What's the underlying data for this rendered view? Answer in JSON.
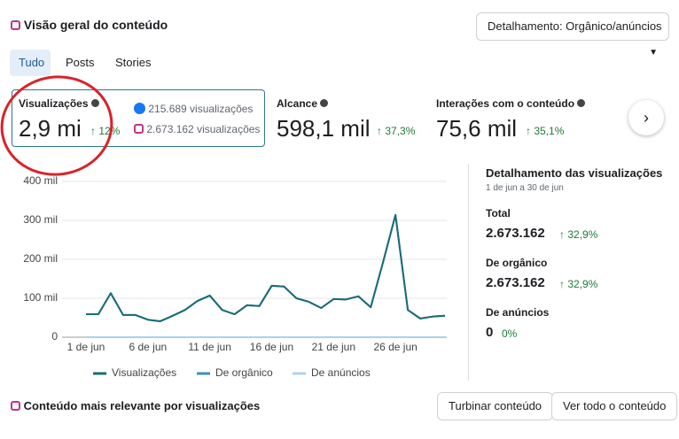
{
  "header": {
    "title": "Visão geral do conteúdo",
    "breakdown": "Detalhamento: Orgânico/anúncios"
  },
  "tabs": [
    "Tudo",
    "Posts",
    "Stories"
  ],
  "metrics": [
    {
      "label": "Visualizações",
      "value": "2,9 mi",
      "change": "12%",
      "facebook": "215.689 visualizações",
      "instagram": "2.673.162 visualizações"
    },
    {
      "label": "Alcance",
      "value": "598,1 mil",
      "change": "37,3%"
    },
    {
      "label": "Interações com o conteúdo",
      "value": "75,6 mil",
      "change": "35,1%"
    }
  ],
  "chart_data": {
    "type": "line",
    "categories": [
      "1 de jun",
      null,
      null,
      null,
      null,
      "6 de jun",
      null,
      null,
      null,
      null,
      "11 de jun",
      null,
      null,
      null,
      null,
      "16 de jun",
      null,
      null,
      null,
      null,
      "21 de jun",
      null,
      null,
      null,
      null,
      "26 de jun",
      null,
      null,
      null,
      null
    ],
    "series": [
      {
        "name": "Visualizações",
        "color": "#1c6b75",
        "values": [
          59000,
          59000,
          113000,
          57000,
          57000,
          45000,
          41000,
          55000,
          70000,
          93000,
          107000,
          70000,
          59000,
          82000,
          80000,
          132000,
          130000,
          100000,
          91000,
          75000,
          98000,
          97000,
          105000,
          77000,
          193000,
          314000,
          70000,
          48000,
          53000,
          55000
        ]
      },
      {
        "name": "De orgânico",
        "color": "#3f8fb8",
        "values": [
          59000,
          59000,
          113000,
          57000,
          57000,
          45000,
          41000,
          55000,
          70000,
          93000,
          107000,
          70000,
          59000,
          82000,
          80000,
          132000,
          130000,
          100000,
          91000,
          75000,
          98000,
          97000,
          105000,
          77000,
          193000,
          314000,
          70000,
          48000,
          53000,
          55000
        ]
      },
      {
        "name": "De anúncios",
        "color": "#a9d3ea",
        "values": [
          0,
          0,
          0,
          0,
          0,
          0,
          0,
          0,
          0,
          0,
          0,
          0,
          0,
          0,
          0,
          0,
          0,
          0,
          0,
          0,
          0,
          0,
          0,
          0,
          0,
          0,
          0,
          0,
          0,
          0
        ]
      }
    ],
    "ylim": [
      0,
      400000
    ],
    "yticks": [
      0,
      {
        "value": 100000,
        "label": "100 mil"
      },
      {
        "value": 200000,
        "label": "200 mil"
      },
      {
        "value": 300000,
        "label": "300 mil"
      },
      {
        "value": 400000,
        "label": "400 mil"
      }
    ],
    "grid": true
  },
  "breakdown_panel": {
    "title": "Detalhamento das visualizações",
    "period": "1 de jun a 30 de jun",
    "items": [
      {
        "label": "Total",
        "value": "2.673.162",
        "change": "32,9%"
      },
      {
        "label": "De orgânico",
        "value": "2.673.162",
        "change": "32,9%"
      },
      {
        "label": "De anúncios",
        "value": "0",
        "change": "0%"
      }
    ]
  },
  "footer": {
    "title": "Conteúdo mais relevante por visualizações",
    "buttons": [
      "Turbinar conteúdo",
      "Ver todo o conteúdo"
    ]
  }
}
